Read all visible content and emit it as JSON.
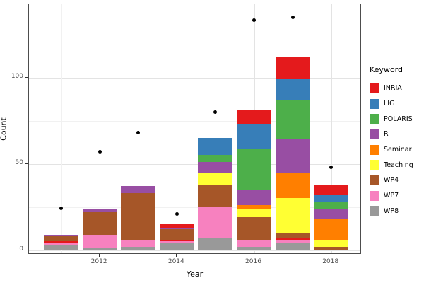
{
  "chart_data": {
    "type": "bar",
    "subtype": "stacked-bar-with-points",
    "title": "",
    "xlabel": "Year",
    "ylabel": "Count",
    "legend_title": "Keyword",
    "legend_position": "right",
    "grid": "on",
    "categories": [
      "2011",
      "2012",
      "2013",
      "2014",
      "2015",
      "2016",
      "2017",
      "2018"
    ],
    "x_major_ticks": [
      "2012",
      "2014",
      "2016",
      "2018"
    ],
    "y_ticks": [
      0,
      50,
      100
    ],
    "y_minor_gridlines": [
      25,
      75,
      125
    ],
    "ylim": [
      0,
      142
    ],
    "stack_order_bottom_to_top": [
      "WP8",
      "WP7",
      "unlabeled-red",
      "WP4",
      "Teaching",
      "Seminar",
      "R",
      "POLARIS",
      "LIG",
      "INRIA"
    ],
    "series": [
      {
        "name": "INRIA",
        "color": "#E41A1C",
        "values": [
          0,
          0,
          0,
          2,
          0,
          8,
          13,
          6
        ]
      },
      {
        "name": "LIG",
        "color": "#377EB8",
        "values": [
          0,
          0,
          0,
          0,
          10,
          14,
          12,
          4
        ]
      },
      {
        "name": "POLARIS",
        "color": "#4DAF4A",
        "values": [
          0,
          0,
          0,
          0,
          4,
          24,
          23,
          4
        ]
      },
      {
        "name": "R",
        "color": "#984EA3",
        "values": [
          1,
          2,
          4,
          1,
          6,
          9,
          19,
          6
        ]
      },
      {
        "name": "Seminar",
        "color": "#FF7F00",
        "values": [
          0,
          0,
          0,
          0,
          0,
          2,
          15,
          12
        ]
      },
      {
        "name": "Teaching",
        "color": "#FFFF33",
        "values": [
          0,
          0,
          0,
          0,
          7,
          5,
          20,
          4
        ]
      },
      {
        "name": "WP4",
        "color": "#A65628",
        "values": [
          3,
          13,
          27,
          6,
          13,
          13,
          3,
          2
        ]
      },
      {
        "name": "WP7",
        "color": "#F781BF",
        "values": [
          1,
          8,
          4,
          1,
          18,
          4,
          2,
          0
        ]
      },
      {
        "name": "WP8",
        "color": "#999999",
        "values": [
          3,
          1,
          2,
          4,
          7,
          2,
          4,
          0
        ]
      }
    ],
    "extra_segments": {
      "name": "unlabeled-red",
      "color": "#E41A1C",
      "values": [
        1,
        0,
        0,
        1,
        0,
        0,
        1,
        0
      ]
    },
    "points": {
      "shape": "circle",
      "color": "#000000",
      "values": [
        24,
        57,
        68,
        21,
        80,
        133,
        135,
        48
      ]
    }
  }
}
